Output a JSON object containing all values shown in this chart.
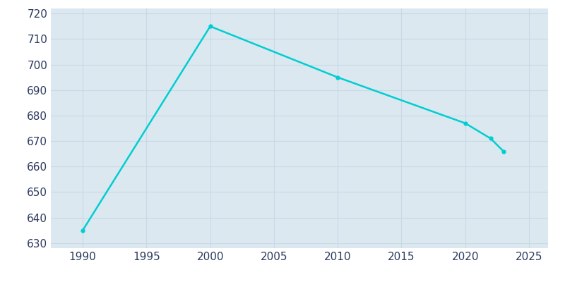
{
  "years": [
    1990,
    2000,
    2010,
    2020,
    2022,
    2023
  ],
  "population": [
    635,
    715,
    695,
    677,
    671,
    666
  ],
  "line_color": "#00CED1",
  "marker": "o",
  "marker_size": 3.5,
  "line_width": 1.8,
  "plot_bg_color": "#dce8f0",
  "fig_bg_color": "#ffffff",
  "grid_color": "#c8d8e8",
  "xlim": [
    1987.5,
    2026.5
  ],
  "ylim": [
    628,
    722
  ],
  "xticks": [
    1990,
    1995,
    2000,
    2005,
    2010,
    2015,
    2020,
    2025
  ],
  "yticks": [
    630,
    640,
    650,
    660,
    670,
    680,
    690,
    700,
    710,
    720
  ],
  "tick_label_color": "#2d3a5e",
  "tick_fontsize": 11
}
